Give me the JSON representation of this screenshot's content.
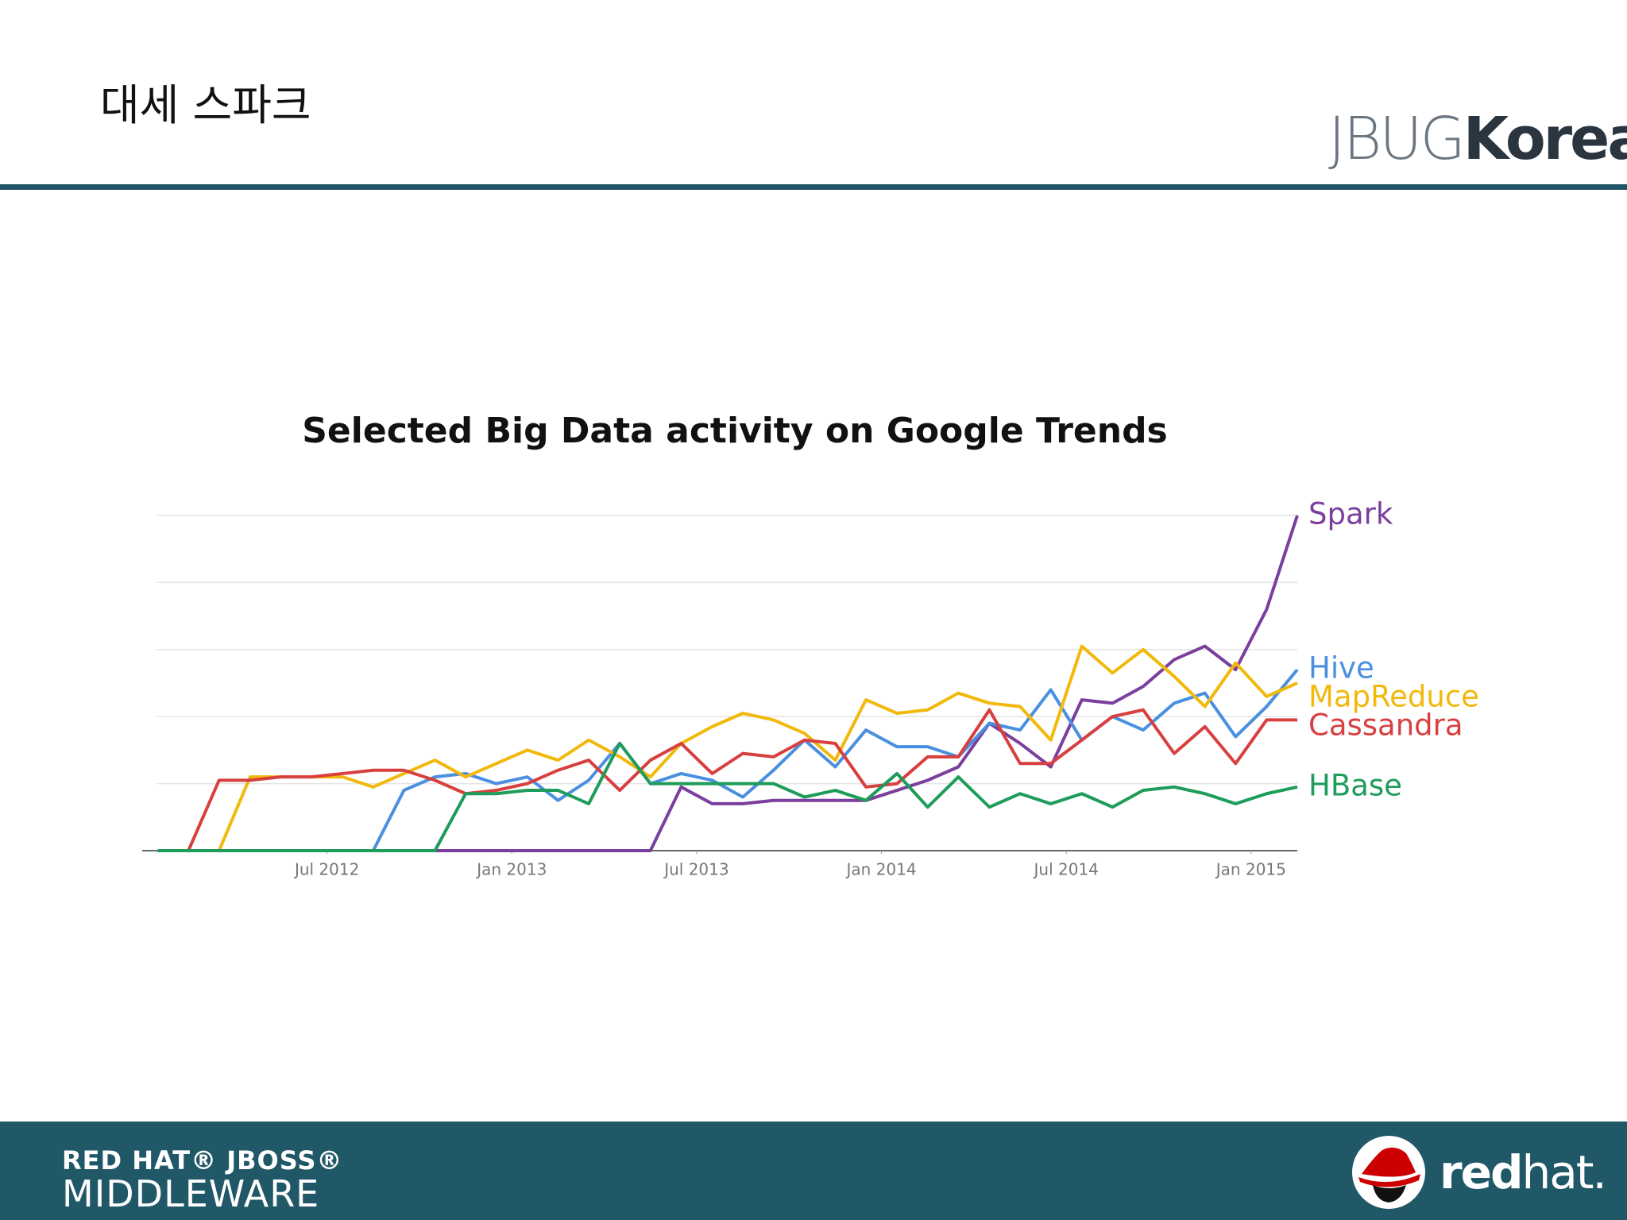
{
  "slide": {
    "title": "대세 스파크",
    "logo": {
      "part1": "JBUG",
      "part2": "Korea"
    },
    "footer_brand": {
      "line1": "RED HAT® JBOSS®",
      "line2": "MIDDLEWARE"
    },
    "footer_logo": {
      "part1": "red",
      "part2": "hat."
    }
  },
  "chart_data": {
    "type": "line",
    "title": "Selected Big Data activity on Google Trends",
    "x": [
      2012.042,
      2012.125,
      2012.208,
      2012.292,
      2012.375,
      2012.458,
      2012.542,
      2012.625,
      2012.708,
      2012.792,
      2012.875,
      2012.958,
      2013.042,
      2013.125,
      2013.208,
      2013.292,
      2013.375,
      2013.458,
      2013.542,
      2013.625,
      2013.708,
      2013.792,
      2013.875,
      2013.958,
      2014.042,
      2014.125,
      2014.208,
      2014.292,
      2014.375,
      2014.458,
      2014.542,
      2014.625,
      2014.708,
      2014.792,
      2014.875,
      2014.958,
      2015.042,
      2015.125
    ],
    "xlim": [
      2012,
      2015.125
    ],
    "xticks": [
      {
        "value": 2012.5,
        "label": "Jul 2012"
      },
      {
        "value": 2013,
        "label": "Jan 2013"
      },
      {
        "value": 2013.5,
        "label": "Jul 2013"
      },
      {
        "value": 2014,
        "label": "Jan 2014"
      },
      {
        "value": 2014.5,
        "label": "Jul 2014"
      },
      {
        "value": 2015,
        "label": "Jan 2015"
      }
    ],
    "ylim": [
      0,
      100
    ],
    "yticks": [
      0,
      20,
      40,
      60,
      80,
      100
    ],
    "grid": true,
    "series": [
      {
        "name": "Spark",
        "color": "#7b3f9e",
        "values": [
          0,
          0,
          0,
          0,
          0,
          0,
          0,
          0,
          0,
          0,
          0,
          0,
          0,
          0,
          0,
          0,
          0,
          19,
          14,
          14,
          15,
          15,
          15,
          15,
          18,
          21,
          25,
          38,
          32,
          25,
          45,
          44,
          49,
          57,
          61,
          54,
          72,
          100
        ]
      },
      {
        "name": "Hive",
        "color": "#4a8fe0",
        "values": [
          0,
          0,
          0,
          0,
          0,
          0,
          0,
          0,
          18,
          22,
          23,
          20,
          22,
          15,
          21,
          32,
          20,
          23,
          21,
          16,
          24,
          33,
          25,
          36,
          31,
          31,
          28,
          38,
          36,
          48,
          33,
          40,
          36,
          44,
          47,
          34,
          43,
          54
        ]
      },
      {
        "name": "MapReduce",
        "color": "#f2b90c",
        "values": [
          0,
          0,
          0,
          22,
          22,
          22,
          22,
          19,
          23,
          27,
          22,
          26,
          30,
          27,
          33,
          28,
          22,
          32,
          37,
          41,
          39,
          35,
          27,
          45,
          41,
          42,
          47,
          44,
          43,
          33,
          61,
          53,
          60,
          52,
          43,
          56,
          46,
          50
        ]
      },
      {
        "name": "Cassandra",
        "color": "#d84040",
        "values": [
          0,
          0,
          21,
          21,
          22,
          22,
          23,
          24,
          24,
          21,
          17,
          18,
          20,
          24,
          27,
          18,
          27,
          32,
          23,
          29,
          28,
          33,
          32,
          19,
          20,
          28,
          28,
          42,
          26,
          26,
          33,
          40,
          42,
          29,
          37,
          26,
          39,
          39
        ]
      },
      {
        "name": "HBase",
        "color": "#1e9c5a",
        "values": [
          0,
          0,
          0,
          0,
          0,
          0,
          0,
          0,
          0,
          0,
          17,
          17,
          18,
          18,
          14,
          32,
          20,
          20,
          20,
          20,
          20,
          16,
          18,
          15,
          23,
          13,
          22,
          13,
          17,
          14,
          17,
          13,
          18,
          19,
          17,
          14,
          17,
          19
        ]
      }
    ]
  }
}
